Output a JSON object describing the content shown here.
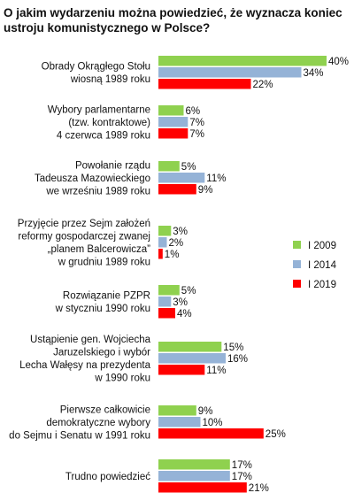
{
  "chart_data": {
    "type": "bar",
    "orientation": "horizontal",
    "title": "O jakim wydarzeniu można powiedzieć, że wyznacza koniec ustroju komunistycznego w Polsce?",
    "value_suffix": "%",
    "categories": [
      [
        "Obrady Okrągłego Stołu",
        "wiosną 1989 roku"
      ],
      [
        "Wybory parlamentarne",
        "(tzw. kontraktowe)",
        "4 czerwca 1989 roku"
      ],
      [
        "Powołanie rządu",
        "Tadeusza Mazowieckiego",
        "we wrześniu 1989 roku"
      ],
      [
        "Przyjęcie przez Sejm założeń",
        "reformy gospodarczej zwanej",
        "„planem Balcerowicza”",
        "w grudniu 1989 roku"
      ],
      [
        "Rozwiązanie PZPR",
        "w styczniu 1990 roku"
      ],
      [
        "Ustąpienie gen. Wojciecha",
        "Jaruzelskiego i wybór",
        "Lecha Wałęsy na prezydenta",
        "w 1990 roku"
      ],
      [
        "Pierwsze całkowicie",
        "demokratyczne wybory",
        "do Sejmu i Senatu w 1991 roku"
      ],
      [
        "Trudno powiedzieć"
      ]
    ],
    "series": [
      {
        "name": "I 2009",
        "color": "#8fd14f",
        "values": [
          40,
          6,
          5,
          3,
          5,
          15,
          9,
          17
        ]
      },
      {
        "name": "I 2014",
        "color": "#95b3d7",
        "values": [
          34,
          7,
          11,
          2,
          3,
          16,
          10,
          17
        ]
      },
      {
        "name": "I 2019",
        "color": "#ff0000",
        "values": [
          22,
          7,
          9,
          1,
          4,
          11,
          25,
          21
        ]
      }
    ],
    "legend_position": "right",
    "grid": false
  }
}
